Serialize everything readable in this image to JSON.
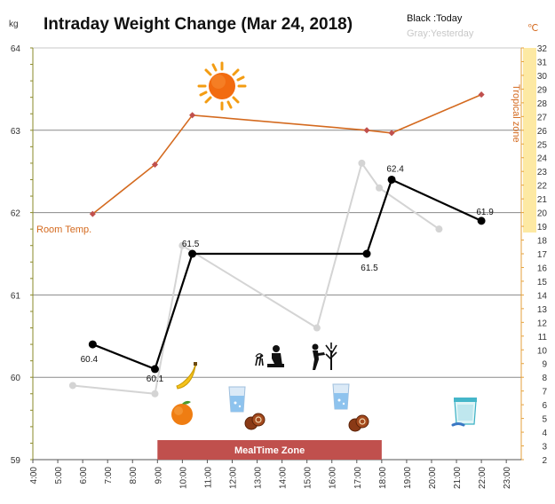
{
  "chart_data": {
    "type": "line",
    "title": "Intraday Weight Change (Mar 24, 2018)",
    "y_unit": "kg",
    "y2_unit": "℃",
    "ylim": [
      59,
      64
    ],
    "yticks": [
      "59",
      "60",
      "61",
      "62",
      "63",
      "64"
    ],
    "y2lim": [
      2,
      32
    ],
    "y2ticks": [
      "2",
      "3",
      "4",
      "5",
      "6",
      "7",
      "8",
      "9",
      "10",
      "11",
      "12",
      "13",
      "14",
      "15",
      "16",
      "17",
      "18",
      "19",
      "20",
      "21",
      "22",
      "23",
      "24",
      "25",
      "26",
      "27",
      "28",
      "29",
      "30",
      "31",
      "32"
    ],
    "y2_highlight": [
      19,
      32
    ],
    "x_hours": [
      4,
      5,
      6,
      7,
      8,
      9,
      10,
      11,
      12,
      13,
      14,
      15,
      16,
      17,
      18,
      19,
      20,
      21,
      22,
      23
    ],
    "xticks": [
      "4:00",
      "5:00",
      "6:00",
      "7:00",
      "8:00",
      "9:00",
      "10:00",
      "11:00",
      "12:00",
      "13:00",
      "14:00",
      "15:00",
      "16:00",
      "17:00",
      "18:00",
      "19:00",
      "20:00",
      "21:00",
      "22:00",
      "23:00"
    ],
    "legend": {
      "today": "Black :Today",
      "yesterday": "Gray:Yesterday"
    },
    "grid": true,
    "series": [
      {
        "name": "Today",
        "color": "#000000",
        "x": [
          6.4,
          8.9,
          10.4,
          17.4,
          18.4,
          22.0
        ],
        "y": [
          60.4,
          60.1,
          61.5,
          61.5,
          62.4,
          61.9
        ],
        "labels": [
          "60.4",
          "60.1",
          "61.5",
          "61.5",
          "62.4",
          "61.9"
        ]
      },
      {
        "name": "Yesterday",
        "color": "#d4d4d4",
        "x": [
          5.6,
          8.9,
          10.0,
          15.4,
          17.2,
          17.9,
          20.3
        ],
        "y": [
          59.9,
          59.8,
          61.6,
          60.6,
          62.6,
          62.3,
          61.8
        ]
      },
      {
        "name": "Room Temp.",
        "color": "#d46a1f",
        "axis": "right",
        "x": [
          6.4,
          8.9,
          10.4,
          17.4,
          18.4,
          22.0
        ],
        "y": [
          19.9,
          23.5,
          27.1,
          26.0,
          25.8,
          28.6
        ]
      }
    ],
    "annotations": {
      "room_temp": "Room Temp.",
      "tropical_zone": "Tropical zone",
      "mealtime_zone": {
        "label": "MealTime Zone",
        "x_start": 9,
        "x_end": 18,
        "color": "#c0504d"
      }
    }
  },
  "icons": {
    "sun": "sun-icon",
    "banana": "banana-icon",
    "orange": "orange-icon",
    "water_glass_1": "water-glass-icon",
    "water_glass_2": "water-glass-icon",
    "cookie_1": "cookie-icon",
    "cookie_2": "cookie-icon",
    "gardening": "gardening-icon",
    "watering": "watering-plant-icon",
    "yogurt": "yogurt-icon"
  }
}
